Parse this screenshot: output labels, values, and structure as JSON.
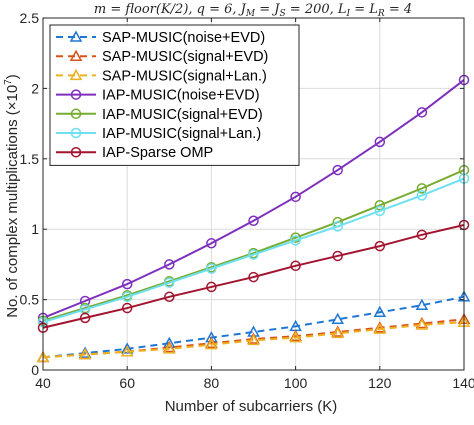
{
  "chart_data": {
    "type": "line",
    "title": "m = floor(K/2), q = 6, J_M = J_S = 200, L_I = L_R = 4",
    "xlabel": "Number of subcarriers (K)",
    "ylabel": "No. of complex multiplications (×10^7)",
    "xlim": [
      40,
      140
    ],
    "ylim": [
      0,
      2.5
    ],
    "xticks": [
      40,
      60,
      80,
      100,
      120,
      140
    ],
    "yticks": [
      0,
      0.5,
      1,
      1.5,
      2,
      2.5
    ],
    "xtick_labels": [
      "40",
      "60",
      "80",
      "100",
      "120",
      "140"
    ],
    "ytick_labels": [
      "0",
      "0.5",
      "1",
      "1.5",
      "2",
      "2.5"
    ],
    "grid": true,
    "legend_position": "top-left",
    "x": [
      40,
      50,
      60,
      70,
      80,
      90,
      100,
      110,
      120,
      130,
      140
    ],
    "series": [
      {
        "name": "SAP-MUSIC(noise+EVD)",
        "color": "#1f77d4",
        "dash": true,
        "marker": "triangle",
        "values": [
          0.09,
          0.12,
          0.15,
          0.19,
          0.23,
          0.27,
          0.31,
          0.36,
          0.41,
          0.46,
          0.52
        ]
      },
      {
        "name": "SAP-MUSIC(signal+EVD)",
        "color": "#d95319",
        "dash": true,
        "marker": "triangle",
        "values": [
          0.09,
          0.11,
          0.13,
          0.16,
          0.19,
          0.22,
          0.24,
          0.27,
          0.3,
          0.33,
          0.36
        ]
      },
      {
        "name": "SAP-MUSIC(signal+Lan.)",
        "color": "#edb120",
        "dash": true,
        "marker": "triangle",
        "values": [
          0.09,
          0.11,
          0.13,
          0.15,
          0.18,
          0.21,
          0.23,
          0.26,
          0.29,
          0.32,
          0.34
        ]
      },
      {
        "name": "IAP-MUSIC(noise+EVD)",
        "color": "#7e2fbe",
        "dash": false,
        "marker": "circle",
        "values": [
          0.37,
          0.49,
          0.61,
          0.75,
          0.9,
          1.06,
          1.23,
          1.42,
          1.62,
          1.83,
          2.06
        ]
      },
      {
        "name": "IAP-MUSIC(signal+EVD)",
        "color": "#77ac30",
        "dash": false,
        "marker": "circle",
        "values": [
          0.35,
          0.44,
          0.53,
          0.63,
          0.73,
          0.83,
          0.94,
          1.05,
          1.17,
          1.29,
          1.42
        ]
      },
      {
        "name": "IAP-MUSIC(signal+Lan.)",
        "color": "#6ee0f0",
        "dash": false,
        "marker": "circle",
        "values": [
          0.34,
          0.43,
          0.52,
          0.62,
          0.72,
          0.82,
          0.92,
          1.02,
          1.13,
          1.24,
          1.36
        ]
      },
      {
        "name": "IAP-Sparse OMP",
        "color": "#a2142f",
        "dash": false,
        "marker": "circle",
        "values": [
          0.3,
          0.37,
          0.44,
          0.52,
          0.59,
          0.66,
          0.74,
          0.81,
          0.88,
          0.96,
          1.03
        ]
      }
    ]
  }
}
